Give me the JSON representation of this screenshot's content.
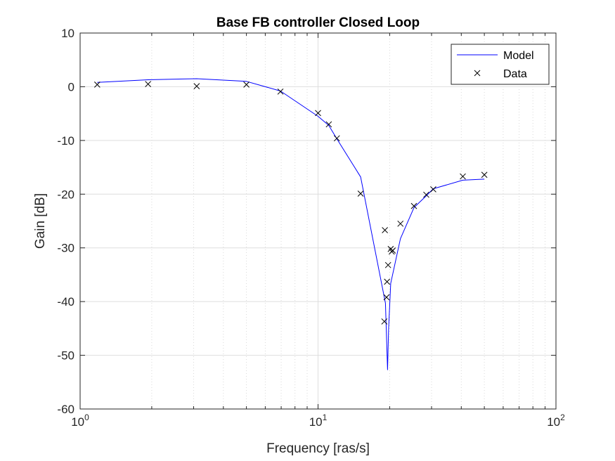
{
  "chart_data": {
    "type": "line",
    "title": "Base FB controller Closed Loop",
    "xlabel": "Frequency [ras/s]",
    "ylabel": "Gain [dB]",
    "xscale": "log",
    "xlim": [
      1,
      100
    ],
    "ylim": [
      -60,
      10
    ],
    "xticks": [
      1,
      10,
      100
    ],
    "xtick_labels": [
      {
        "base": "10",
        "exp": "0"
      },
      {
        "base": "10",
        "exp": "1"
      },
      {
        "base": "10",
        "exp": "2"
      }
    ],
    "yticks": [
      -60,
      -50,
      -40,
      -30,
      -20,
      -10,
      0,
      10
    ],
    "ytick_labels": [
      "-60",
      "-50",
      "-40",
      "-30",
      "-20",
      "-10",
      "0",
      "10"
    ],
    "grid": true,
    "legend_position": "top-right",
    "series": [
      {
        "name": "Model",
        "style": "line",
        "color": "#0000ff",
        "x": [
          1.18,
          1.93,
          3.09,
          5.0,
          6.95,
          10.0,
          11.1,
          12.0,
          15.1,
          19.2,
          19.6,
          19.8,
          20.2,
          22.2,
          25.3,
          28.5,
          30.5,
          40.6,
          50.0
        ],
        "y": [
          0.8,
          1.3,
          1.5,
          1.0,
          -0.8,
          -5.5,
          -7.2,
          -9.7,
          -16.8,
          -40.3,
          -52.7,
          -45.0,
          -36.6,
          -28.3,
          -22.5,
          -20.3,
          -19.0,
          -17.4,
          -17.2
        ]
      },
      {
        "name": "Data",
        "style": "marker-x",
        "color": "#000000",
        "x": [
          1.18,
          1.93,
          3.09,
          5.0,
          6.95,
          10.0,
          11.1,
          12.0,
          15.1,
          19.0,
          19.1,
          19.4,
          19.5,
          19.7,
          20.2,
          20.4,
          20.6,
          22.2,
          25.3,
          28.5,
          30.5,
          40.6,
          50.0
        ],
        "y": [
          0.4,
          0.5,
          0.1,
          0.4,
          -0.9,
          -4.9,
          -7.0,
          -9.6,
          -19.9,
          -43.7,
          -26.7,
          -39.2,
          -36.3,
          -33.2,
          -30.2,
          -30.7,
          -30.5,
          -25.5,
          -22.2,
          -20.1,
          -19.1,
          -16.7,
          -16.4
        ]
      }
    ]
  }
}
